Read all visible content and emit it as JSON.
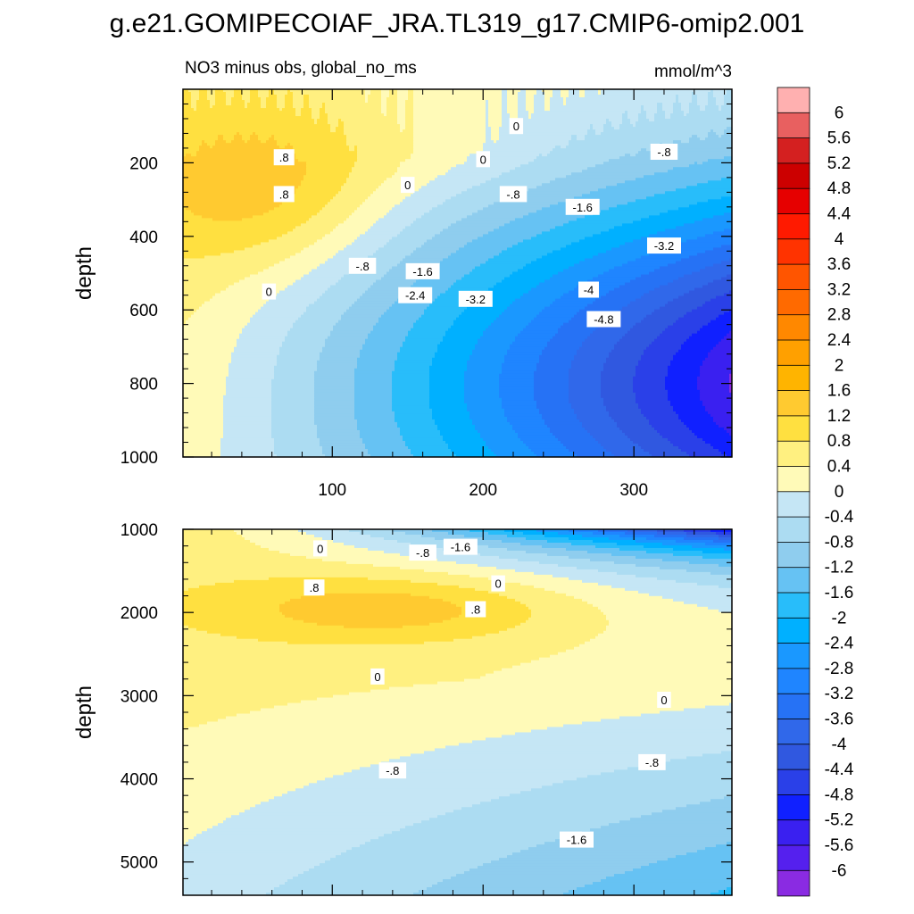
{
  "figure": {
    "title": "g.e21.GOMIPECOIAF_JRA.TL319_g17.CMIP6-omip2.001",
    "subtitle_left": "NO3 minus obs, global_no_ms",
    "subtitle_right": "mmol/m^3",
    "ylabel": "depth"
  },
  "colorbar": {
    "labels": [
      "6",
      "5.6",
      "5.2",
      "4.8",
      "4.4",
      "4",
      "3.6",
      "3.2",
      "2.8",
      "2.4",
      "2",
      "1.6",
      "1.2",
      "0.8",
      "0.4",
      "0",
      "-0.4",
      "-0.8",
      "-1.2",
      "-1.6",
      "-2",
      "-2.4",
      "-2.8",
      "-3.2",
      "-3.6",
      "-4",
      "-4.4",
      "-4.8",
      "-5.2",
      "-5.6",
      "-6"
    ],
    "colors": [
      "#ffb0b0",
      "#e86060",
      "#d42020",
      "#cc0000",
      "#e60000",
      "#ff1a00",
      "#ff3300",
      "#ff5500",
      "#ff6a00",
      "#ff8800",
      "#ffa000",
      "#ffb400",
      "#ffca30",
      "#ffe040",
      "#fff080",
      "#fffab8",
      "#c5e6f5",
      "#acdcf2",
      "#8fcdee",
      "#66c2f3",
      "#28bdfa",
      "#00b0ff",
      "#1a98ff",
      "#1f85ff",
      "#2672f5",
      "#3068ea",
      "#3058e0",
      "#2a40e8",
      "#1020ff",
      "#3a20f0",
      "#5520ee",
      "#8a2be2"
    ]
  },
  "chart_data": [
    {
      "type": "contour",
      "panel": "upper",
      "xlabel": "",
      "ylabel": "depth",
      "x_ticks": [
        100,
        200,
        300
      ],
      "y_ticks": [
        200,
        400,
        600,
        800,
        1000
      ],
      "xlim": [
        1,
        365
      ],
      "ylim": [
        1000,
        0
      ],
      "contour_interval": 0.4,
      "contour_labels": [
        {
          "text": "0",
          "x": 222,
          "y": 100
        },
        {
          "text": "0",
          "x": 200,
          "y": 190
        },
        {
          "text": "0",
          "x": 150,
          "y": 260
        },
        {
          "text": "0",
          "x": 58,
          "y": 550
        },
        {
          "text": ".8",
          "x": 68,
          "y": 185
        },
        {
          "text": ".8",
          "x": 68,
          "y": 285
        },
        {
          "text": "-.8",
          "x": 320,
          "y": 170
        },
        {
          "text": "-.8",
          "x": 220,
          "y": 285
        },
        {
          "text": "-.8",
          "x": 120,
          "y": 480
        },
        {
          "text": "-1.6",
          "x": 266,
          "y": 320
        },
        {
          "text": "-1.6",
          "x": 160,
          "y": 495
        },
        {
          "text": "-2.4",
          "x": 155,
          "y": 560
        },
        {
          "text": "-3.2",
          "x": 195,
          "y": 570
        },
        {
          "text": "-3.2",
          "x": 320,
          "y": 425
        },
        {
          "text": "-4",
          "x": 270,
          "y": 545
        },
        {
          "text": "-4.8",
          "x": 280,
          "y": 625
        }
      ],
      "min_value": -6.0,
      "max_value": 1.2
    },
    {
      "type": "contour",
      "panel": "lower",
      "xlabel": "",
      "ylabel": "depth",
      "x_ticks": [
        100,
        200,
        300
      ],
      "y_ticks": [
        1000,
        2000,
        3000,
        4000,
        5000
      ],
      "xlim": [
        1,
        365
      ],
      "ylim": [
        5400,
        1000
      ],
      "contour_interval": 0.4,
      "contour_labels": [
        {
          "text": "0",
          "x": 92,
          "y": 1230
        },
        {
          "text": "0",
          "x": 210,
          "y": 1650
        },
        {
          "text": "0",
          "x": 130,
          "y": 2770
        },
        {
          "text": "0",
          "x": 320,
          "y": 3050
        },
        {
          "text": ".8",
          "x": 88,
          "y": 1700
        },
        {
          "text": ".8",
          "x": 195,
          "y": 1960
        },
        {
          "text": "-.8",
          "x": 160,
          "y": 1280
        },
        {
          "text": "-.8",
          "x": 140,
          "y": 3900
        },
        {
          "text": "-.8",
          "x": 312,
          "y": 3800
        },
        {
          "text": "-1.6",
          "x": 185,
          "y": 1210
        },
        {
          "text": "-1.6",
          "x": 262,
          "y": 4730
        }
      ],
      "min_value": -5.6,
      "max_value": 1.0
    }
  ]
}
